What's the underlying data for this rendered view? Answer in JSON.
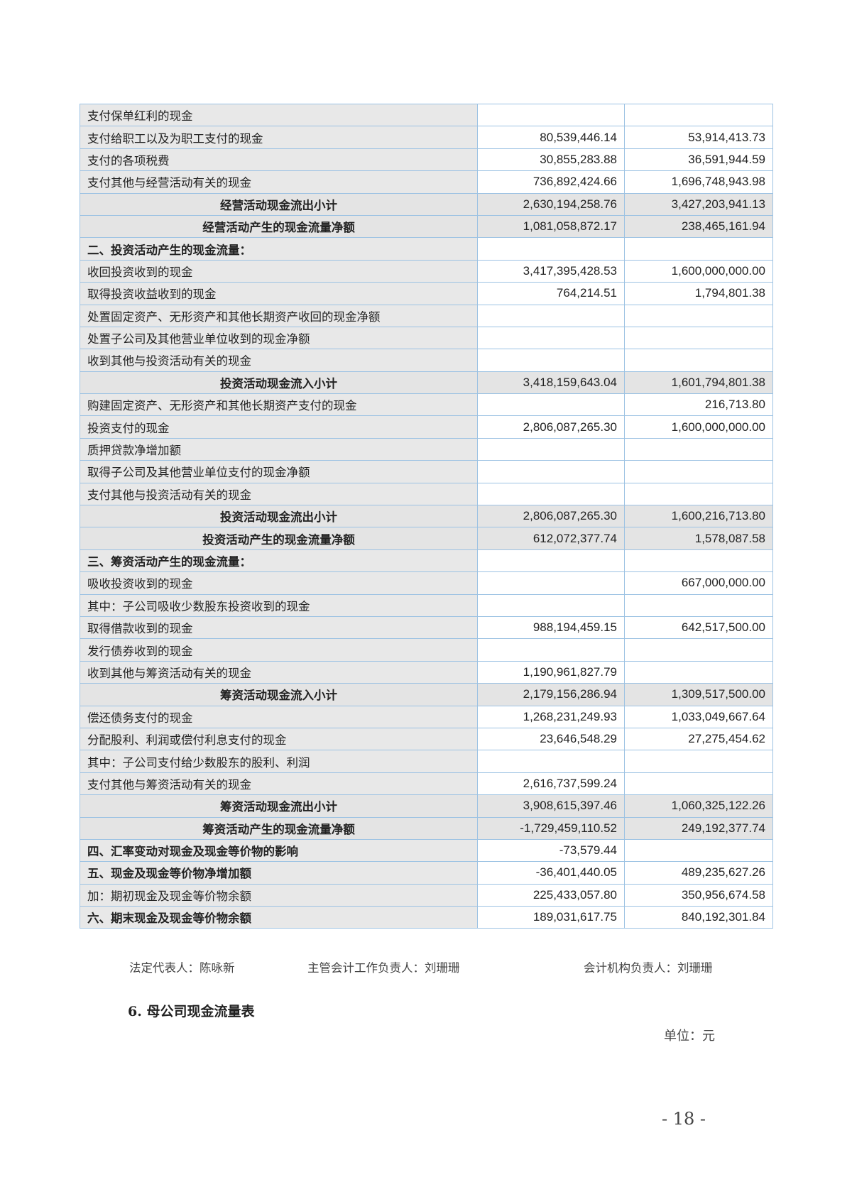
{
  "table": {
    "rows": [
      {
        "type": "normal",
        "label": "支付保单红利的现金",
        "current": "",
        "prior": ""
      },
      {
        "type": "normal",
        "label": "支付给职工以及为职工支付的现金",
        "current": "80,539,446.14",
        "prior": "53,914,413.73"
      },
      {
        "type": "normal",
        "label": "支付的各项税费",
        "current": "30,855,283.88",
        "prior": "36,591,944.59"
      },
      {
        "type": "normal",
        "label": "支付其他与经营活动有关的现金",
        "current": "736,892,424.66",
        "prior": "1,696,748,943.98"
      },
      {
        "type": "subtotal",
        "label": "经营活动现金流出小计",
        "current": "2,630,194,258.76",
        "prior": "3,427,203,941.13"
      },
      {
        "type": "subtotal",
        "label": "经营活动产生的现金流量净额",
        "current": "1,081,058,872.17",
        "prior": "238,465,161.94"
      },
      {
        "type": "section",
        "label": "二、投资活动产生的现金流量：",
        "current": "",
        "prior": ""
      },
      {
        "type": "normal",
        "label": "收回投资收到的现金",
        "current": "3,417,395,428.53",
        "prior": "1,600,000,000.00"
      },
      {
        "type": "normal",
        "label": "取得投资收益收到的现金",
        "current": "764,214.51",
        "prior": "1,794,801.38"
      },
      {
        "type": "normal",
        "label": "处置固定资产、无形资产和其他长期资产收回的现金净额",
        "current": "",
        "prior": ""
      },
      {
        "type": "normal",
        "label": "处置子公司及其他营业单位收到的现金净额",
        "current": "",
        "prior": ""
      },
      {
        "type": "normal",
        "label": "收到其他与投资活动有关的现金",
        "current": "",
        "prior": ""
      },
      {
        "type": "subtotal",
        "label": "投资活动现金流入小计",
        "current": "3,418,159,643.04",
        "prior": "1,601,794,801.38"
      },
      {
        "type": "normal",
        "label": "购建固定资产、无形资产和其他长期资产支付的现金",
        "current": "",
        "prior": "216,713.80"
      },
      {
        "type": "normal",
        "label": "投资支付的现金",
        "current": "2,806,087,265.30",
        "prior": "1,600,000,000.00"
      },
      {
        "type": "normal",
        "label": "质押贷款净增加额",
        "current": "",
        "prior": ""
      },
      {
        "type": "normal",
        "label": "取得子公司及其他营业单位支付的现金净额",
        "current": "",
        "prior": ""
      },
      {
        "type": "normal",
        "label": "支付其他与投资活动有关的现金",
        "current": "",
        "prior": ""
      },
      {
        "type": "subtotal",
        "label": "投资活动现金流出小计",
        "current": "2,806,087,265.30",
        "prior": "1,600,216,713.80"
      },
      {
        "type": "subtotal",
        "label": "投资活动产生的现金流量净额",
        "current": "612,072,377.74",
        "prior": "1,578,087.58"
      },
      {
        "type": "section",
        "label": "三、筹资活动产生的现金流量：",
        "current": "",
        "prior": ""
      },
      {
        "type": "normal",
        "label": "吸收投资收到的现金",
        "current": "",
        "prior": "667,000,000.00"
      },
      {
        "type": "normal",
        "label": "其中：子公司吸收少数股东投资收到的现金",
        "current": "",
        "prior": ""
      },
      {
        "type": "normal",
        "label": "取得借款收到的现金",
        "current": "988,194,459.15",
        "prior": "642,517,500.00"
      },
      {
        "type": "normal",
        "label": "发行债券收到的现金",
        "current": "",
        "prior": ""
      },
      {
        "type": "normal",
        "label": "收到其他与筹资活动有关的现金",
        "current": "1,190,961,827.79",
        "prior": ""
      },
      {
        "type": "subtotal",
        "label": "筹资活动现金流入小计",
        "current": "2,179,156,286.94",
        "prior": "1,309,517,500.00"
      },
      {
        "type": "normal",
        "label": "偿还债务支付的现金",
        "current": "1,268,231,249.93",
        "prior": "1,033,049,667.64"
      },
      {
        "type": "normal",
        "label": "分配股利、利润或偿付利息支付的现金",
        "current": "23,646,548.29",
        "prior": "27,275,454.62"
      },
      {
        "type": "normal",
        "label": "其中：子公司支付给少数股东的股利、利润",
        "current": "",
        "prior": ""
      },
      {
        "type": "normal",
        "label": "支付其他与筹资活动有关的现金",
        "current": "2,616,737,599.24",
        "prior": ""
      },
      {
        "type": "subtotal",
        "label": "筹资活动现金流出小计",
        "current": "3,908,615,397.46",
        "prior": "1,060,325,122.26"
      },
      {
        "type": "subtotal",
        "label": "筹资活动产生的现金流量净额",
        "current": "-1,729,459,110.52",
        "prior": "249,192,377.74"
      },
      {
        "type": "section",
        "label": "四、汇率变动对现金及现金等价物的影响",
        "current": "-73,579.44",
        "prior": ""
      },
      {
        "type": "section",
        "label": "五、现金及现金等价物净增加额",
        "current": "-36,401,440.05",
        "prior": "489,235,627.26"
      },
      {
        "type": "normal",
        "label": "加：期初现金及现金等价物余额",
        "current": "225,433,057.80",
        "prior": "350,956,674.58"
      },
      {
        "type": "section",
        "label": "六、期末现金及现金等价物余额",
        "current": "189,031,617.75",
        "prior": "840,192,301.84"
      }
    ]
  },
  "signatures": {
    "legal_rep": "法定代表人：陈咏新",
    "accounting_head": "主管会计工作负责人：刘珊珊",
    "accounting_dept_head": "会计机构负责人：刘珊珊"
  },
  "next_section_title": "6. 母公司现金流量表",
  "unit": "单位：元",
  "page_number": "- 18 -"
}
